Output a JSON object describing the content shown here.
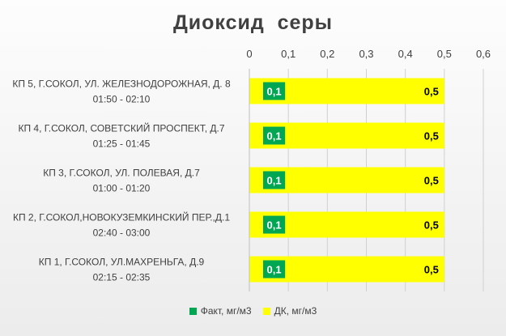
{
  "chart_data": {
    "type": "bar",
    "orientation": "horizontal",
    "title": "Диоксид  серы",
    "categories": [
      [
        "КП 5, Г.СОКОЛ, УЛ. ЖЕЛЕЗНОДОРОЖНАЯ, Д. 8",
        "01:50 - 02:10"
      ],
      [
        "КП 4, Г.СОКОЛ, СОВЕТСКИЙ ПРОСПЕКТ, Д.7",
        "01:25 - 01:45"
      ],
      [
        "КП 3, Г.СОКОЛ, УЛ. ПОЛЕВАЯ, Д.7",
        "01:00 - 01:20"
      ],
      [
        "КП 2, Г.СОКОЛ,НОВОКУЗЕМКИНСКИЙ ПЕР.,Д.1",
        "02:40 - 03:00"
      ],
      [
        "КП 1, Г.СОКОЛ, УЛ.МАХРЕНЬГА, Д.9",
        "02:15 - 02:35"
      ]
    ],
    "series": [
      {
        "name": "Факт, мг/м3",
        "color": "#00a651",
        "values": [
          0.1,
          0.1,
          0.1,
          0.1,
          0.1
        ],
        "labels": [
          "0,1",
          "0,1",
          "0,1",
          "0,1",
          "0,1"
        ]
      },
      {
        "name": "ДК, мг/м3",
        "color": "#ffff00",
        "values": [
          0.5,
          0.5,
          0.5,
          0.5,
          0.5
        ],
        "labels": [
          "0,5",
          "0,5",
          "0,5",
          "0,5",
          "0,5"
        ]
      }
    ],
    "xlim": [
      0,
      0.6
    ],
    "xticks": [
      "0",
      "0,1",
      "0,2",
      "0,3",
      "0,4",
      "0,5",
      "0,6"
    ],
    "xaxis_position": "top",
    "grid": true,
    "legend_position": "bottom"
  }
}
